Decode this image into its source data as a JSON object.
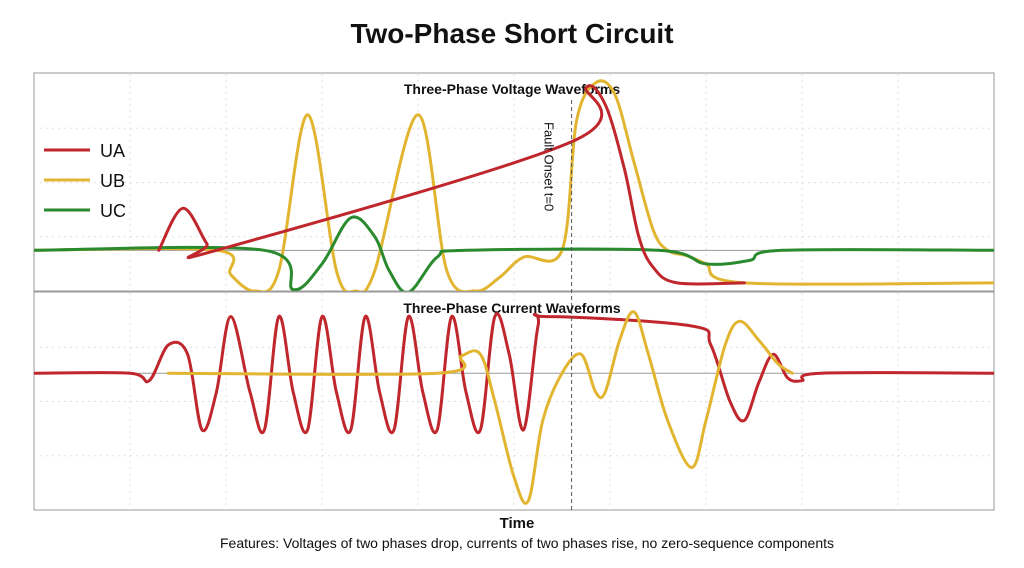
{
  "title": "Two-Phase Short Circuit",
  "xlabel": "Time",
  "caption": "Features: Voltages of two phases drop, currents of two phases rise, no zero-sequence components",
  "colors": {
    "UA": "#c0272d",
    "UB": "#e2b531",
    "UC": "#2a8a2e",
    "frame": "#9a9a9a",
    "grid": "#e0e0e0",
    "marker": "#555555"
  },
  "chart_data": [
    {
      "type": "line",
      "title": "Three-Phase Voltage Waveforms",
      "xlabel": "Time",
      "ylabel": "",
      "xlim": [
        0,
        100
      ],
      "ylim": [
        -0.6,
        2.6
      ],
      "grid": true,
      "legend": "top-left",
      "annotations": [
        {
          "x": 56,
          "label": "Fault Onset t=0"
        }
      ],
      "series": [
        {
          "name": "UA",
          "color": "#c0272d",
          "points": [
            [
              13,
              0
            ],
            [
              15.5,
              0.62
            ],
            [
              18,
              0.1
            ],
            [
              19,
              0
            ],
            [
              56,
              1.6
            ],
            [
              57.5,
              2.4
            ],
            [
              59.5,
              2.15
            ],
            [
              61.5,
              1.2
            ],
            [
              63,
              0.2
            ],
            [
              64.5,
              -0.25
            ],
            [
              67,
              -0.48
            ],
            [
              74,
              -0.48
            ]
          ]
        },
        {
          "name": "UB",
          "color": "#e2b531",
          "points": [
            [
              0,
              0
            ],
            [
              19,
              0
            ],
            [
              20.5,
              -0.36
            ],
            [
              23,
              -0.6
            ],
            [
              25.5,
              -0.3
            ],
            [
              28.5,
              2.0
            ],
            [
              31.5,
              -0.3
            ],
            [
              33.5,
              -0.6
            ],
            [
              35.5,
              -0.3
            ],
            [
              40,
              2.0
            ],
            [
              43,
              -0.3
            ],
            [
              46,
              -0.6
            ],
            [
              48.5,
              -0.4
            ],
            [
              51,
              -0.1
            ],
            [
              55,
              0
            ],
            [
              56.5,
              1.9
            ],
            [
              58.5,
              2.47
            ],
            [
              60.5,
              2.3
            ],
            [
              62.5,
              1.3
            ],
            [
              64.5,
              0.3
            ],
            [
              66,
              0
            ],
            [
              68,
              -0.08
            ],
            [
              70,
              -0.2
            ],
            [
              74,
              -0.48
            ],
            [
              100,
              -0.48
            ]
          ]
        },
        {
          "name": "UC",
          "color": "#2a8a2e",
          "points": [
            [
              0,
              0
            ],
            [
              24,
              0
            ],
            [
              27,
              -0.58
            ],
            [
              30,
              -0.2
            ],
            [
              33,
              0.48
            ],
            [
              35.5,
              0.2
            ],
            [
              37,
              -0.3
            ],
            [
              39,
              -0.62
            ],
            [
              42,
              -0.1
            ],
            [
              45,
              0
            ],
            [
              65,
              0
            ],
            [
              70,
              -0.2
            ],
            [
              74.5,
              -0.15
            ],
            [
              78,
              0
            ],
            [
              100,
              0
            ]
          ]
        }
      ]
    },
    {
      "type": "line",
      "title": "Three-Phase Current Waveforms",
      "xlabel": "Time",
      "ylabel": "",
      "xlim": [
        0,
        100
      ],
      "ylim": [
        -1.45,
        0.85
      ],
      "grid": true,
      "annotations": [],
      "series": [
        {
          "name": "UA",
          "color": "#c0272d",
          "points": [
            [
              0,
              0
            ],
            [
              10,
              0
            ],
            [
              12,
              -0.08
            ],
            [
              14,
              0.3
            ],
            [
              16,
              0.2
            ],
            [
              17.5,
              -0.6
            ],
            [
              19,
              -0.2
            ],
            [
              20.5,
              0.6
            ],
            [
              22.5,
              -0.2
            ],
            [
              24,
              -0.6
            ],
            [
              25.5,
              0.6
            ],
            [
              27,
              -0.2
            ],
            [
              28.5,
              -0.6
            ],
            [
              30,
              0.6
            ],
            [
              31.5,
              -0.2
            ],
            [
              33,
              -0.6
            ],
            [
              34.5,
              0.6
            ],
            [
              36,
              -0.2
            ],
            [
              37.5,
              -0.6
            ],
            [
              39,
              0.6
            ],
            [
              40.5,
              -0.2
            ],
            [
              42,
              -0.6
            ],
            [
              43.5,
              0.6
            ],
            [
              45,
              -0.2
            ],
            [
              46.5,
              -0.6
            ],
            [
              48,
              0.6
            ],
            [
              49.5,
              0.2
            ],
            [
              51,
              -0.6
            ],
            [
              52.5,
              0.5
            ],
            [
              53.5,
              0.6
            ],
            [
              68.5,
              0.5
            ],
            [
              70.5,
              0.3
            ],
            [
              72.5,
              -0.3
            ],
            [
              74,
              -0.5
            ],
            [
              75.5,
              -0.1
            ],
            [
              77,
              0.2
            ],
            [
              78.5,
              -0.05
            ],
            [
              80,
              -0.08
            ],
            [
              82,
              0
            ],
            [
              100,
              0
            ]
          ]
        },
        {
          "name": "UB",
          "color": "#e2b531",
          "points": [
            [
              14,
              0
            ],
            [
              42,
              0
            ],
            [
              44.5,
              0.18
            ],
            [
              46.5,
              0.2
            ],
            [
              48,
              -0.3
            ],
            [
              50,
              -1.1
            ],
            [
              51.5,
              -1.35
            ],
            [
              53,
              -0.5
            ],
            [
              55,
              0
            ],
            [
              57,
              0.2
            ],
            [
              58.5,
              -0.2
            ],
            [
              59.5,
              -0.2
            ],
            [
              61,
              0.35
            ],
            [
              62.5,
              0.65
            ],
            [
              64,
              0.2
            ],
            [
              66,
              -0.5
            ],
            [
              68.5,
              -1.0
            ],
            [
              70,
              -0.5
            ],
            [
              72,
              0.3
            ],
            [
              73.5,
              0.55
            ],
            [
              75.5,
              0.35
            ],
            [
              77.5,
              0.1
            ],
            [
              79,
              0
            ]
          ]
        }
      ]
    }
  ]
}
